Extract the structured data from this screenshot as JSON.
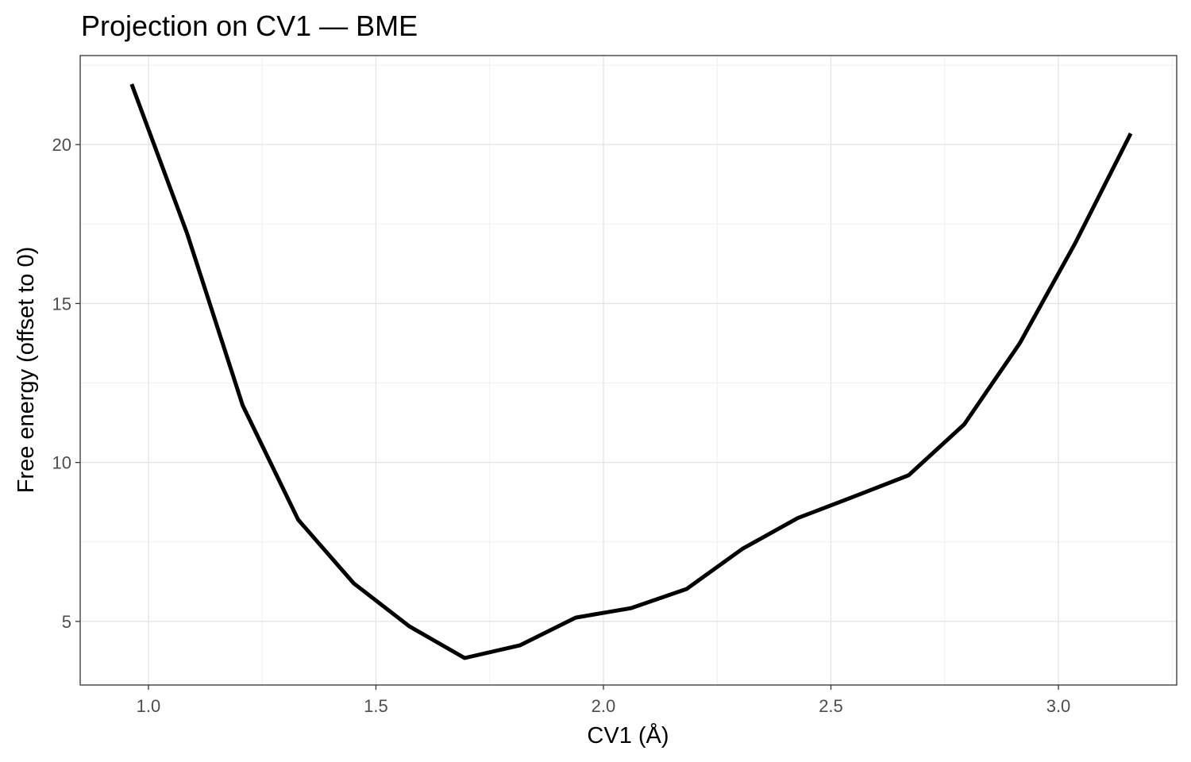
{
  "chart_data": {
    "type": "line",
    "title": "Projection on CV1 — BME",
    "xlabel": "CV1 (Å)",
    "ylabel": "Free energy (offset to 0)",
    "xlim": [
      0.85,
      3.26
    ],
    "ylim": [
      3.0,
      22.8
    ],
    "xticks": [
      1.0,
      1.5,
      2.0,
      2.5,
      3.0
    ],
    "xtick_labels": [
      "1.0",
      "1.5",
      "2.0",
      "2.5",
      "3.0"
    ],
    "yticks": [
      5,
      10,
      15,
      20
    ],
    "ytick_labels": [
      "5",
      "10",
      "15",
      "20"
    ],
    "grid": true,
    "legend": "none",
    "series": [
      {
        "color": "#000000",
        "x": [
          0.963,
          1.085,
          1.207,
          1.329,
          1.451,
          1.573,
          1.695,
          1.817,
          1.939,
          2.061,
          2.183,
          2.305,
          2.427,
          2.549,
          2.671,
          2.793,
          2.915,
          3.037,
          3.159
        ],
        "y": [
          21.9,
          17.2,
          11.8,
          8.2,
          6.2,
          4.85,
          3.85,
          4.25,
          5.12,
          5.42,
          6.02,
          7.28,
          8.25,
          8.92,
          9.6,
          11.2,
          13.75,
          16.9,
          20.35
        ]
      }
    ]
  }
}
